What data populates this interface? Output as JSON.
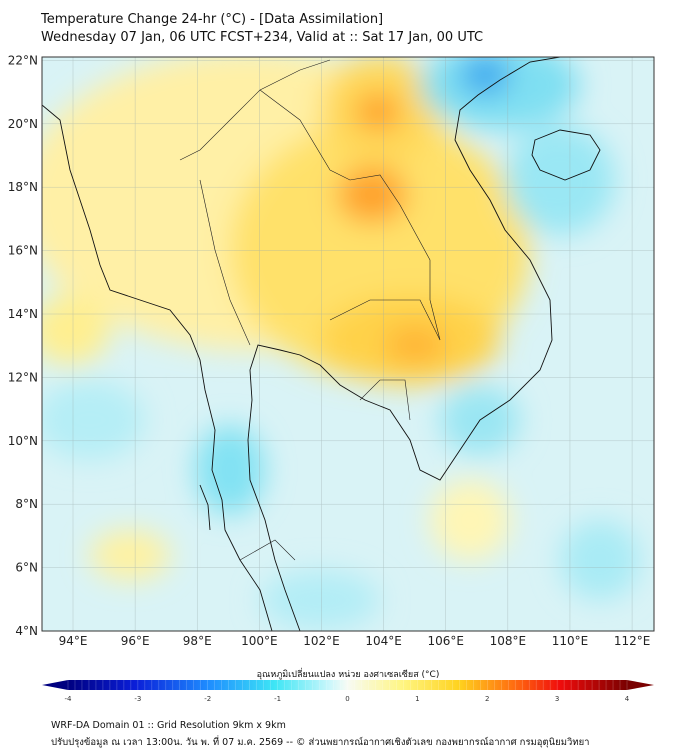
{
  "header": {
    "title": "Temperature Change 24-hr (°C) - [Data Assimilation]",
    "subtitle": "Wednesday 07 Jan, 06 UTC FCST+234, Valid at :: Sat 17 Jan, 00 UTC"
  },
  "map": {
    "lat_ticks": [
      {
        "v": 4,
        "label": "4°N"
      },
      {
        "v": 6,
        "label": "6°N"
      },
      {
        "v": 8,
        "label": "8°N"
      },
      {
        "v": 10,
        "label": "10°N"
      },
      {
        "v": 12,
        "label": "12°N"
      },
      {
        "v": 14,
        "label": "14°N"
      },
      {
        "v": 16,
        "label": "16°N"
      },
      {
        "v": 18,
        "label": "18°N"
      },
      {
        "v": 20,
        "label": "20°N"
      },
      {
        "v": 22,
        "label": "22°N"
      }
    ],
    "lon_ticks": [
      {
        "v": 94,
        "label": "94°E"
      },
      {
        "v": 96,
        "label": "96°E"
      },
      {
        "v": 98,
        "label": "98°E"
      },
      {
        "v": 100,
        "label": "100°E"
      },
      {
        "v": 102,
        "label": "102°E"
      },
      {
        "v": 104,
        "label": "104°E"
      },
      {
        "v": 106,
        "label": "106°E"
      },
      {
        "v": 108,
        "label": "108°E"
      },
      {
        "v": 110,
        "label": "110°E"
      },
      {
        "v": 112,
        "label": "112°E"
      }
    ]
  },
  "colorbar": {
    "label": "อุณหภูมิเปลี่ยนแปลง หน่วย องศาเซลเซียส (°C)",
    "ticks": [
      "-4",
      "-3",
      "-2",
      "-1",
      "0",
      "1",
      "2",
      "3",
      "4"
    ],
    "range": [
      -4,
      4
    ]
  },
  "footer": {
    "line1": "WRF-DA Domain 01 :: Grid Resolution 9km x 9km",
    "line2": "ปรับปรุงข้อมูล ณ เวลา 13:00น. วัน พ. ที่ 07 ม.ค. 2569 -- © ส่วนพยากรณ์อากาศเชิงตัวเลข กองพยากรณ์อากาศ กรมอุตุนิยมวิทยา"
  }
}
